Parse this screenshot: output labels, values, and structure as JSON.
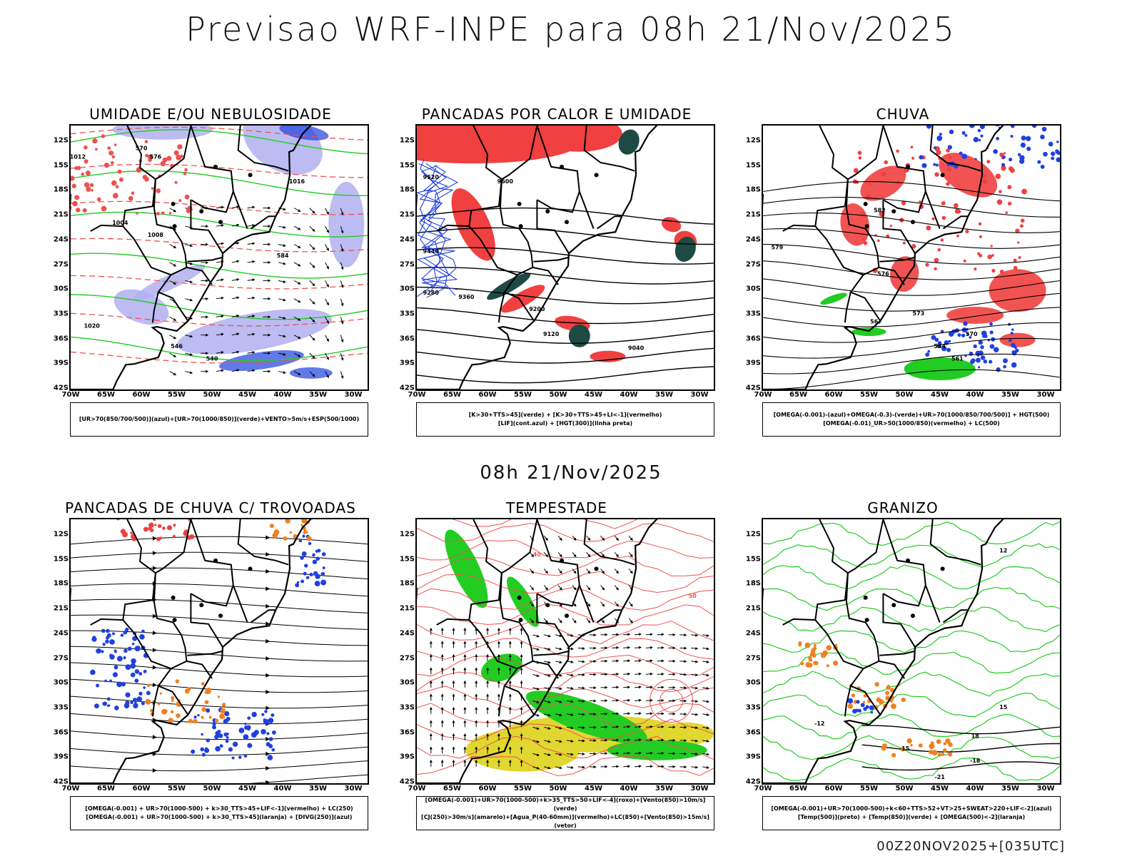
{
  "title": "Previsao WRF-INPE  para 08h 21/Nov/2025",
  "mid_title": "08h 21/Nov/2025",
  "footer": "00Z20NOV2025+[035UTC]",
  "lat_labels": [
    "12S",
    "15S",
    "18S",
    "21S",
    "24S",
    "27S",
    "30S",
    "33S",
    "36S",
    "39S",
    "42S"
  ],
  "lon_labels": [
    "70W",
    "65W",
    "60W",
    "55W",
    "50W",
    "45W",
    "40W",
    "35W",
    "30W"
  ],
  "colors": {
    "red": "#f04040",
    "green": "#22cc22",
    "blue": "#2040e0",
    "lavender": "#b0b0f0",
    "darkteal": "#1e4a44",
    "orange": "#f08020",
    "yellow": "#e0d830"
  },
  "panels": [
    {
      "id": "umidade",
      "title": "UMIDADE E/OU NEBULOSIDADE",
      "legend": [
        "[UR>70(850/700/500)](azul)+[UR>70(1000/850)](verde)+VENTO>5m/s+ESP(500/1000)"
      ],
      "contour_labels": [
        "1012",
        "1008",
        "1020",
        "1004",
        "1016",
        "570",
        "576",
        "584",
        "546",
        "540"
      ]
    },
    {
      "id": "pancadas-calor",
      "title": "PANCADAS POR CALOR E UMIDADE",
      "legend": [
        "[K>30+TTS>45](verde) + [K>30+TTS>45+LI<-1](vermelho)",
        "[LIF](cont.azul) + [HGT(300)](linha preta)"
      ],
      "contour_labels": [
        "9520",
        "9600",
        "9440",
        "9360",
        "9280",
        "9200",
        "9120",
        "9040"
      ]
    },
    {
      "id": "chuva",
      "title": "CHUVA",
      "legend": [
        "[OMEGA(-0.001)-(azul)+OMEGA(-0.3)-(verde)+UR>70(1000/850/700/500)] + HGT(500)",
        "[OMEGA(-0.01)_UR>50(1000/850)(vermelho) + LC(500)"
      ],
      "contour_labels": [
        "582",
        "579",
        "576",
        "573",
        "570",
        "567",
        "564",
        "561"
      ]
    },
    {
      "id": "pancadas-trovoadas",
      "title": "PANCADAS DE CHUVA C/ TROVOADAS",
      "legend": [
        "[OMEGA(-0.001) + UR>70(1000-500) + k>30_TTS>45+LIF<-1](vermelho) + LC(250)",
        "[OMEGA(-0.001) + UR>70(1000-500) + k>30_TTS>45](laranja) + [DIVG(250)](azul)"
      ],
      "contour_labels": []
    },
    {
      "id": "tempestade",
      "title": "TEMPESTADE",
      "legend": [
        "[OMEGA(-0.001)+UR>70(1000-500)+k>35_TTS>50+LIF<-4](roxo)+[Vento(850)>10m/s](verde)",
        "[CJ(250)>30m/s](amarelo)+[Agua_P(40-60mm)](vermelho)+LC(850)+[Vento(850)>15m/s](vetor)"
      ],
      "contour_labels": [
        "40",
        "50"
      ]
    },
    {
      "id": "granizo",
      "title": "GRANIZO",
      "legend": [
        "[OMEGA(-0.001)+UR>70(1000-500)+k<60+TTS>52+VT>25+SWEAT>220+LIF<-2](azul)",
        "[Temp(500)](preto) + [Temp(850)](verde) + [OMEGA(500)<-2](laranja)"
      ],
      "contour_labels": [
        "-12",
        "-15",
        "-18",
        "-21",
        "12",
        "15",
        "18"
      ]
    }
  ]
}
